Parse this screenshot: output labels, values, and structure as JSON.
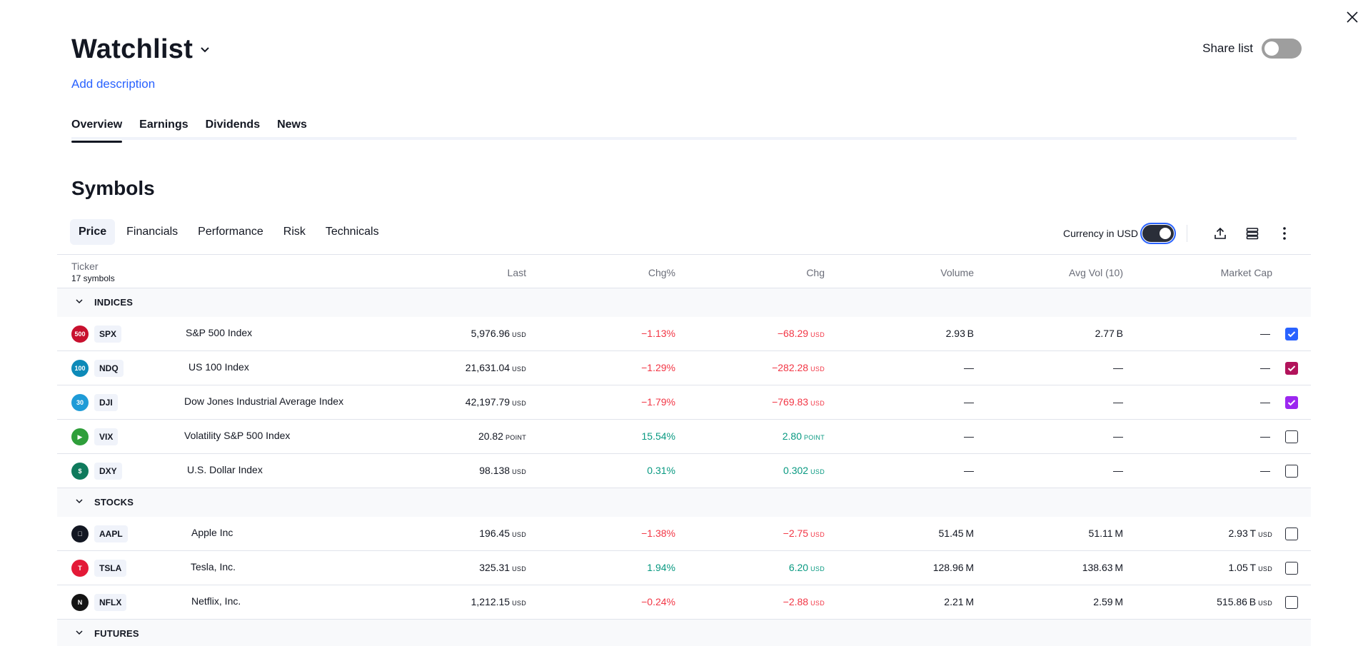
{
  "header": {
    "title": "Watchlist",
    "add_description": "Add description",
    "share_label": "Share list"
  },
  "tabs": [
    {
      "label": "Overview"
    },
    {
      "label": "Earnings"
    },
    {
      "label": "Dividends"
    },
    {
      "label": "News"
    }
  ],
  "section_title": "Symbols",
  "subtabs": [
    {
      "label": "Price"
    },
    {
      "label": "Financials"
    },
    {
      "label": "Performance"
    },
    {
      "label": "Risk"
    },
    {
      "label": "Technicals"
    }
  ],
  "tools": {
    "currency_label": "Currency in USD"
  },
  "table": {
    "ticker_header": "Ticker",
    "symbol_count": "17 symbols",
    "columns": [
      "Last",
      "Chg%",
      "Chg",
      "Volume",
      "Avg Vol (10)",
      "Market Cap"
    ]
  },
  "groups": [
    {
      "title": "INDICES",
      "rows": [
        {
          "logo_text": "500",
          "logo_color": "#c8102e",
          "ticker": "SPX",
          "name": "S&P 500 Index",
          "last": "5,976.96",
          "last_unit": "USD",
          "chgp": "−1.13%",
          "chg": "−68.29",
          "chg_unit": "USD",
          "dir": "neg",
          "volume": "2.93 B",
          "avg": "2.77 B",
          "cap": "—",
          "cap_unit": "",
          "check_color": "#2962ff",
          "checked": true
        },
        {
          "logo_text": "100",
          "logo_color": "#0d8ab8",
          "ticker": "NDQ",
          "name": "US 100 Index",
          "last": "21,631.04",
          "last_unit": "USD",
          "chgp": "−1.29%",
          "chg": "−282.28",
          "chg_unit": "USD",
          "dir": "neg",
          "volume": "—",
          "avg": "—",
          "cap": "—",
          "cap_unit": "",
          "check_color": "#b2135b",
          "checked": true
        },
        {
          "logo_text": "30",
          "logo_color": "#1e9bd7",
          "ticker": "DJI",
          "name": "Dow Jones Industrial Average Index",
          "last": "42,197.79",
          "last_unit": "USD",
          "chgp": "−1.79%",
          "chg": "−769.83",
          "chg_unit": "USD",
          "dir": "neg",
          "volume": "—",
          "avg": "—",
          "cap": "—",
          "cap_unit": "",
          "check_color": "#9c27f0",
          "checked": true
        },
        {
          "logo_text": "▶",
          "logo_color": "#2e9e3a",
          "ticker": "VIX",
          "name": "Volatility S&P 500 Index",
          "last": "20.82",
          "last_unit": "POINT",
          "chgp": "15.54%",
          "chg": "2.80",
          "chg_unit": "POINT",
          "dir": "pos",
          "volume": "—",
          "avg": "—",
          "cap": "—",
          "cap_unit": "",
          "check_color": "",
          "checked": false
        },
        {
          "logo_text": "$",
          "logo_color": "#0f7a5c",
          "ticker": "DXY",
          "name": "U.S. Dollar Index",
          "last": "98.138",
          "last_unit": "USD",
          "chgp": "0.31%",
          "chg": "0.302",
          "chg_unit": "USD",
          "dir": "pos",
          "volume": "—",
          "avg": "—",
          "cap": "—",
          "cap_unit": "",
          "check_color": "",
          "checked": false
        }
      ]
    },
    {
      "title": "STOCKS",
      "rows": [
        {
          "logo_text": "",
          "logo_color": "#131722",
          "ticker": "AAPL",
          "name": "Apple Inc",
          "last": "196.45",
          "last_unit": "USD",
          "chgp": "−1.38%",
          "chg": "−2.75",
          "chg_unit": "USD",
          "dir": "neg",
          "volume": "51.45 M",
          "avg": "51.11 M",
          "cap": "2.93 T",
          "cap_unit": "USD",
          "check_color": "",
          "checked": false
        },
        {
          "logo_text": "T",
          "logo_color": "#e31937",
          "ticker": "TSLA",
          "name": "Tesla, Inc.",
          "last": "325.31",
          "last_unit": "USD",
          "chgp": "1.94%",
          "chg": "6.20",
          "chg_unit": "USD",
          "dir": "pos",
          "volume": "128.96 M",
          "avg": "138.63 M",
          "cap": "1.05 T",
          "cap_unit": "USD",
          "check_color": "",
          "checked": false
        },
        {
          "logo_text": "N",
          "logo_color": "#141414",
          "ticker": "NFLX",
          "name": "Netflix, Inc.",
          "last": "1,212.15",
          "last_unit": "USD",
          "chgp": "−0.24%",
          "chg": "−2.88",
          "chg_unit": "USD",
          "dir": "neg",
          "volume": "2.21 M",
          "avg": "2.59 M",
          "cap": "515.86 B",
          "cap_unit": "USD",
          "check_color": "",
          "checked": false
        }
      ]
    },
    {
      "title": "FUTURES",
      "rows": []
    }
  ]
}
